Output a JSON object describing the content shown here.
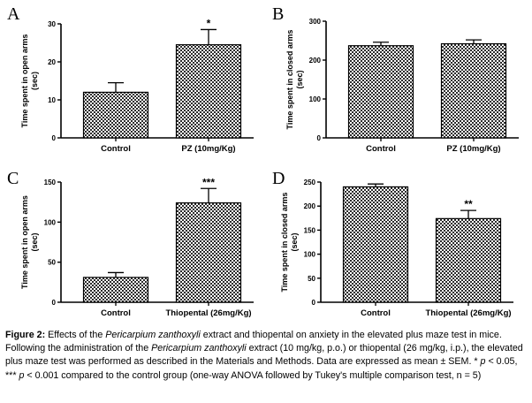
{
  "chart_data": [
    {
      "type": "bar",
      "panel": "A",
      "ylabel_lines": [
        "Time spent in open arms",
        "(sec)"
      ],
      "categories": [
        "Control",
        "PZ (10mg/Kg)"
      ],
      "values": [
        12,
        24.5
      ],
      "errors": [
        2.5,
        4
      ],
      "significance": [
        "",
        "*"
      ],
      "ylim": [
        0,
        30
      ],
      "yticks": [
        0,
        10,
        20,
        30
      ]
    },
    {
      "type": "bar",
      "panel": "B",
      "ylabel_lines": [
        "Time spent in closed arms",
        "(sec)"
      ],
      "categories": [
        "Control",
        "PZ (10mg/Kg)"
      ],
      "values": [
        237,
        242
      ],
      "errors": [
        9,
        10
      ],
      "significance": [
        "",
        ""
      ],
      "ylim": [
        0,
        300
      ],
      "yticks": [
        0,
        100,
        200,
        300
      ]
    },
    {
      "type": "bar",
      "panel": "C",
      "ylabel_lines": [
        "Time spent in open arms",
        "(sec)"
      ],
      "categories": [
        "Control",
        "Thiopental (26mg/Kg)"
      ],
      "values": [
        31,
        124
      ],
      "errors": [
        6,
        18
      ],
      "significance": [
        "",
        "***"
      ],
      "ylim": [
        0,
        150
      ],
      "yticks": [
        0,
        50,
        100,
        150
      ]
    },
    {
      "type": "bar",
      "panel": "D",
      "ylabel_lines": [
        "Time spent in closed arms",
        "(sec)"
      ],
      "categories": [
        "Control",
        "Thiopental (26mg/Kg)"
      ],
      "values": [
        240,
        174
      ],
      "errors": [
        6,
        17
      ],
      "significance": [
        "",
        "**"
      ],
      "ylim": [
        0,
        250
      ],
      "yticks": [
        0,
        50,
        100,
        150,
        200,
        250
      ]
    }
  ],
  "caption": {
    "label": "Figure 2:",
    "t1": " Effects of the ",
    "i1": "Pericarpium zanthoxyli",
    "t2": " extract and thiopental on anxiety in the elevated plus maze test in mice. Following the administration of the ",
    "i2": "Pericarpium zanthoxyli",
    "t3": " extract (10 mg/kg, p.o.) or thiopental (26 mg/kg, i.p.), the elevated plus maze test was performed as described in the Materials and Methods.  Data are expressed as mean ± SEM. * ",
    "p1": "p",
    "t4": " < 0.05, *** ",
    "p2": "p",
    "t5": " < 0.001 compared to the control group (one-way ANOVA followed by Tukey's multiple comparison test, n = 5)"
  }
}
